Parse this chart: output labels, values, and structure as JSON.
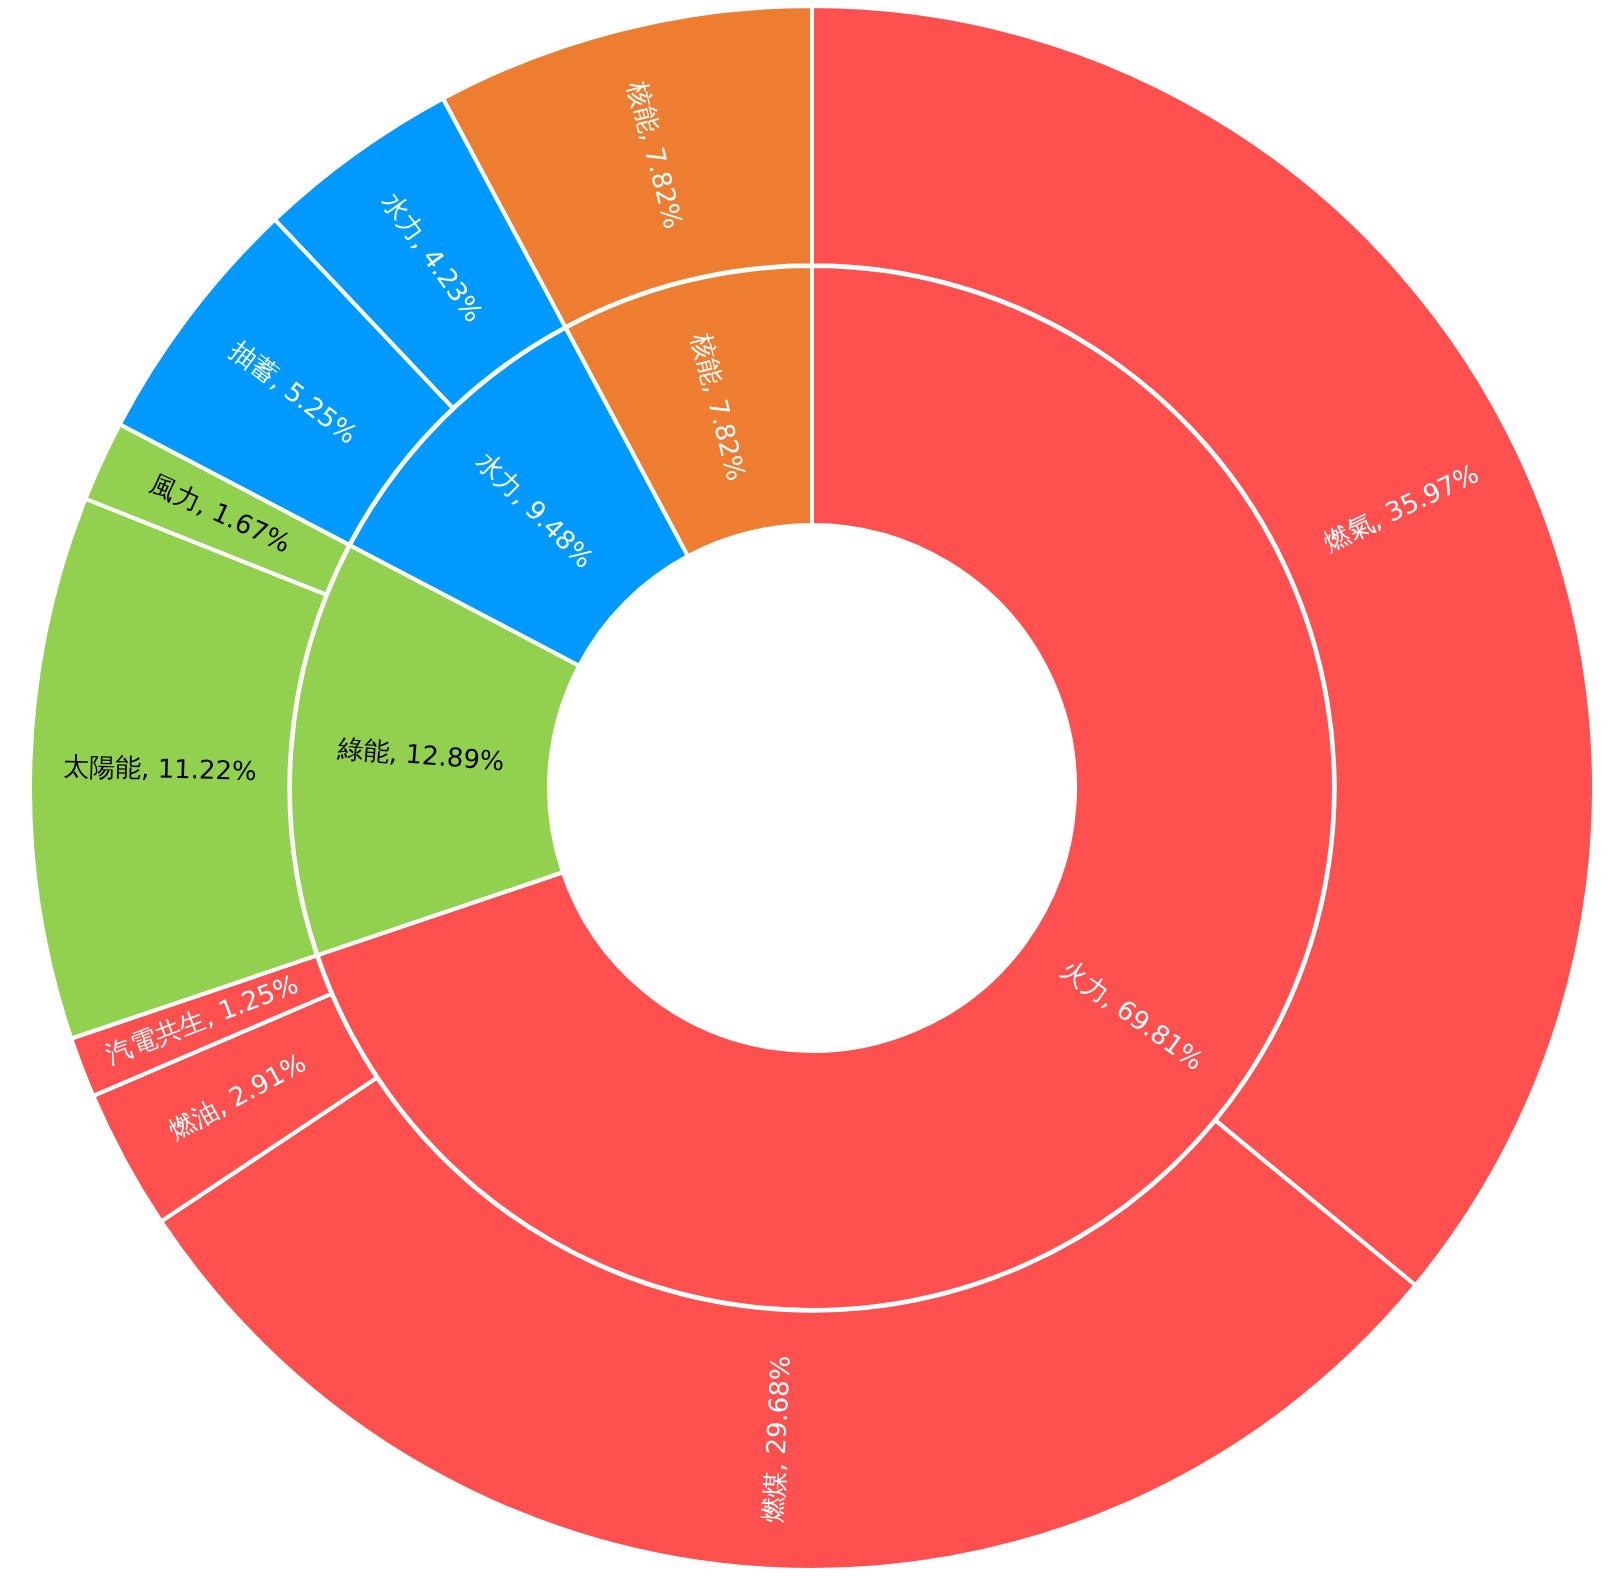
{
  "chart_data": [
    {
      "type": "donut",
      "legend": false,
      "categories": [
        "火力",
        "綠能",
        "水力",
        "核能"
      ],
      "values": [
        69.81,
        12.89,
        9.48,
        7.82
      ],
      "colors": [
        "#ff5050",
        "#92d050",
        "#0099ff",
        "#ed7d31"
      ],
      "value_labels": [
        "69.81%",
        "12.89%",
        "9.48%",
        "7.82%"
      ]
    },
    {
      "type": "donut",
      "legend": false,
      "categories": [
        "燃氣",
        "燃煤",
        "燃油",
        "汽電共生",
        "太陽能",
        "風力",
        "抽蓄",
        "水力",
        "核能"
      ],
      "values": [
        35.97,
        29.68,
        2.91,
        1.25,
        11.22,
        1.67,
        5.25,
        4.23,
        7.82
      ],
      "colors": [
        "#ff5050",
        "#ff5050",
        "#ff5050",
        "#ff5050",
        "#92d050",
        "#92d050",
        "#0099ff",
        "#0099ff",
        "#ed7d31"
      ],
      "value_labels": [
        "35.97%",
        "29.68%",
        "2.91%",
        "1.25%",
        "11.22%",
        "1.67%",
        "5.25%",
        "4.23%",
        "7.82%"
      ]
    }
  ]
}
